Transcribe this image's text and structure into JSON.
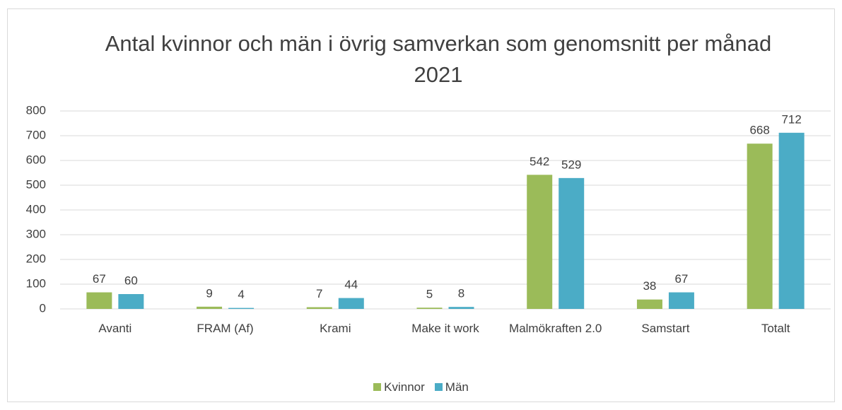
{
  "chart_data": {
    "type": "bar",
    "title": "Antal kvinnor och män i övrig samverkan som genomsnitt per månad 2021",
    "categories": [
      "Avanti",
      "FRAM (Af)",
      "Krami",
      "Make it work",
      "Malmökraften 2.0",
      "Samstart",
      "Totalt"
    ],
    "series": [
      {
        "name": "Kvinnor",
        "color": "#9bbb59",
        "values": [
          67,
          9,
          7,
          5,
          542,
          38,
          668
        ]
      },
      {
        "name": "Män",
        "color": "#4bacc6",
        "values": [
          60,
          4,
          44,
          8,
          529,
          67,
          712
        ]
      }
    ],
    "ylim": [
      0,
      800
    ],
    "yticks": [
      0,
      100,
      200,
      300,
      400,
      500,
      600,
      700,
      800
    ],
    "grid": true,
    "legend": "bottom"
  }
}
